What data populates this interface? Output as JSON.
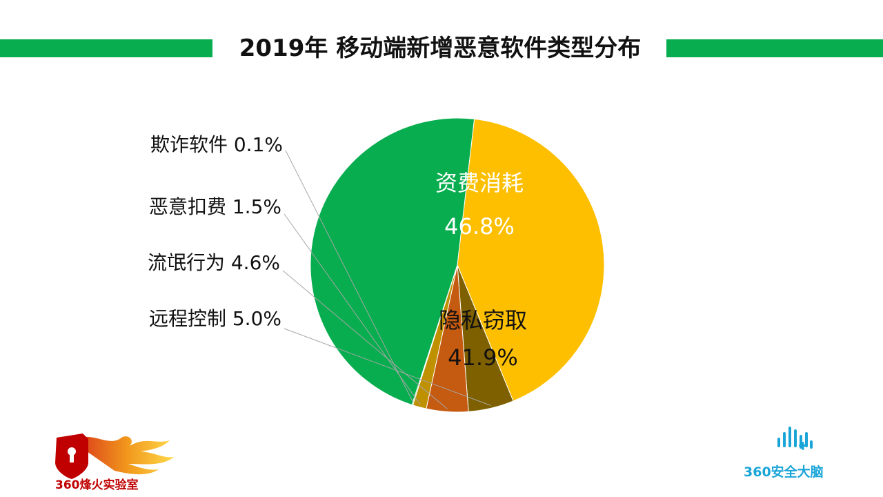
{
  "header": {
    "title": "2019年 移动端新增恶意软件类型分布"
  },
  "chart_data": {
    "type": "pie",
    "title": "2019年 移动端新增恶意软件类型分布",
    "slices": [
      {
        "name": "资费消耗",
        "value": 46.8,
        "value_label": "46.8%",
        "color": "#07ad4e",
        "label_style": "inside"
      },
      {
        "name": "隐私窃取",
        "value": 41.9,
        "value_label": "41.9%",
        "color": "#fdbf00",
        "label_style": "inside"
      },
      {
        "name": "远程控制",
        "value": 5.0,
        "value_label": "5.0%",
        "color": "#7f6000",
        "label_style": "outside"
      },
      {
        "name": "流氓行为",
        "value": 4.6,
        "value_label": "4.6%",
        "color": "#c55a11",
        "label_style": "outside"
      },
      {
        "name": "恶意扣费",
        "value": 1.5,
        "value_label": "1.5%",
        "color": "#bf9000",
        "label_style": "outside"
      },
      {
        "name": "欺诈软件",
        "value": 0.1,
        "value_label": "0.1%",
        "color": "#70ad47",
        "label_style": "outside"
      }
    ],
    "legend": "none"
  },
  "logos": {
    "left": {
      "text": "360烽火实验室",
      "color": "#c00000"
    },
    "right": {
      "text": "360安全大脑",
      "color": "#1aa5d8"
    }
  }
}
